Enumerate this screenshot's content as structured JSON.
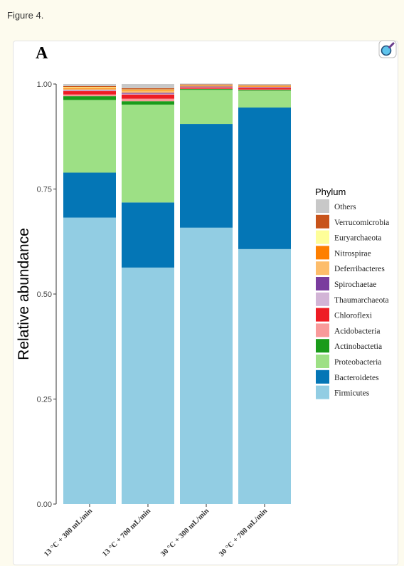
{
  "figure_label": "Figure 4.",
  "chart_data": {
    "type": "bar",
    "stacked": true,
    "panel_label": "A",
    "xlabel": "",
    "ylabel": "Relative abundance",
    "ylim": [
      0,
      1
    ],
    "yticks": [
      "0.00",
      "0.25",
      "0.50",
      "0.75",
      "1.00"
    ],
    "ytick_values": [
      0,
      0.25,
      0.5,
      0.75,
      1.0
    ],
    "categories": [
      "13 °C + 300 mL/min",
      "13 °C + 700 mL/min",
      "30 °C + 300 mL/min",
      "30 °C + 700 mL/min"
    ],
    "legend_title": "Phylum",
    "legend_position": "right",
    "grid": false,
    "series": [
      {
        "name": "Firmicutes",
        "color": "#92cde3",
        "values": [
          0.682,
          0.563,
          0.658,
          0.607
        ]
      },
      {
        "name": "Bacteroidetes",
        "color": "#0476b6",
        "values": [
          0.107,
          0.155,
          0.247,
          0.337
        ]
      },
      {
        "name": "Proteobacteria",
        "color": "#9de085",
        "values": [
          0.173,
          0.233,
          0.081,
          0.04
        ]
      },
      {
        "name": "Actinobactetia",
        "color": "#1a9b1a",
        "values": [
          0.009,
          0.008,
          0.002,
          0.002
        ]
      },
      {
        "name": "Acidobacteria",
        "color": "#f99a9a",
        "values": [
          0.004,
          0.006,
          0.001,
          0.001
        ]
      },
      {
        "name": "Chloroflexi",
        "color": "#ee1c24",
        "values": [
          0.008,
          0.01,
          0.003,
          0.004
        ]
      },
      {
        "name": "Thaumarchaeota",
        "color": "#d2b4d6",
        "values": [
          0.002,
          0.002,
          0.001,
          0.001
        ]
      },
      {
        "name": "Spirochaetae",
        "color": "#7a3c9e",
        "values": [
          0.001,
          0.002,
          0.001,
          0.001
        ]
      },
      {
        "name": "Deferribacteres",
        "color": "#fdbd6b",
        "values": [
          0.003,
          0.004,
          0.001,
          0.001
        ]
      },
      {
        "name": "Nitrospirae",
        "color": "#fe7f00",
        "values": [
          0.002,
          0.002,
          0.001,
          0.001
        ]
      },
      {
        "name": "Euryarchaeota",
        "color": "#fefe99",
        "values": [
          0.002,
          0.002,
          0.001,
          0.001
        ]
      },
      {
        "name": "Verrucomicrobia",
        "color": "#c8541b",
        "values": [
          0.002,
          0.003,
          0.002,
          0.002
        ]
      },
      {
        "name": "Others",
        "color": "#c8c8c8",
        "values": [
          0.005,
          0.01,
          0.002,
          0.002
        ]
      }
    ]
  }
}
